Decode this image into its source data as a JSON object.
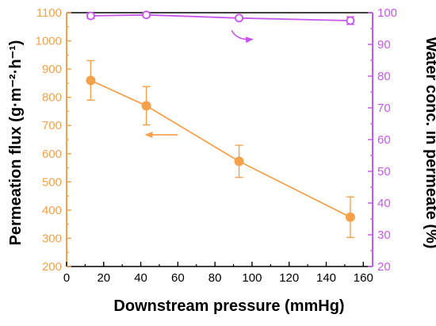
{
  "chart_data": {
    "type": "line",
    "title": "",
    "xlabel": "Downstream pressure (mmHg)",
    "ylabel_left": "Permeation flux (g·m⁻²·h⁻¹)",
    "ylabel_right": "Water conc. in permeate (%)",
    "xlim": [
      0,
      165
    ],
    "ylim_left": [
      200,
      1100
    ],
    "ylim_right": [
      20,
      100
    ],
    "x_ticks": [
      "0",
      "20",
      "40",
      "60",
      "80",
      "100",
      "120",
      "140",
      "160"
    ],
    "y_left_ticks": [
      "200",
      "300",
      "400",
      "500",
      "600",
      "700",
      "800",
      "900",
      "1000",
      "1100"
    ],
    "y_right_ticks": [
      "20",
      "30",
      "40",
      "50",
      "60",
      "70",
      "80",
      "90",
      "100"
    ],
    "grid": false,
    "legend": "none",
    "series": [
      {
        "axis": "left",
        "color": "#f5a14a",
        "marker": "filled-circle",
        "x": [
          13,
          43,
          93,
          153
        ],
        "y": [
          860,
          770,
          573,
          375
        ],
        "error": [
          70,
          68,
          57,
          72
        ]
      },
      {
        "axis": "right",
        "color": "#c955f0",
        "marker": "open-circle",
        "x": [
          13,
          43,
          93,
          153
        ],
        "y": [
          99.0,
          99.3,
          98.3,
          97.5
        ],
        "error": [
          0.8,
          0.6,
          0.6,
          1.2
        ]
      }
    ],
    "annotations": [
      {
        "type": "arrow",
        "points_to": "left-axis",
        "color": "#f5a14a"
      },
      {
        "type": "arrow",
        "points_to": "right-axis",
        "color": "#c955f0"
      }
    ]
  }
}
